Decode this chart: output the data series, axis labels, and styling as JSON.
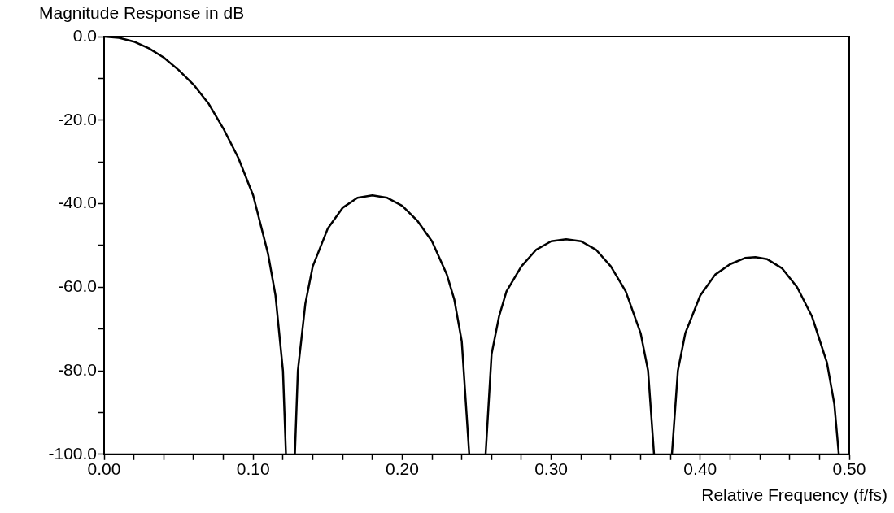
{
  "chart_data": {
    "type": "line",
    "ylabel": "Magnitude Response in dB",
    "xlabel": "Relative Frequency (f/fs)",
    "xlim": [
      0,
      0.5
    ],
    "ylim": [
      -100,
      0
    ],
    "xticks": [
      {
        "value": 0,
        "label": "0.00"
      },
      {
        "value": 0.02,
        "label": null
      },
      {
        "value": 0.04,
        "label": null
      },
      {
        "value": 0.06,
        "label": null
      },
      {
        "value": 0.08,
        "label": null
      },
      {
        "value": 0.1,
        "label": "0.10"
      },
      {
        "value": 0.12,
        "label": null
      },
      {
        "value": 0.14,
        "label": null
      },
      {
        "value": 0.16,
        "label": null
      },
      {
        "value": 0.18,
        "label": null
      },
      {
        "value": 0.2,
        "label": "0.20"
      },
      {
        "value": 0.22,
        "label": null
      },
      {
        "value": 0.24,
        "label": null
      },
      {
        "value": 0.26,
        "label": null
      },
      {
        "value": 0.28,
        "label": null
      },
      {
        "value": 0.3,
        "label": "0.30"
      },
      {
        "value": 0.32,
        "label": null
      },
      {
        "value": 0.34,
        "label": null
      },
      {
        "value": 0.36,
        "label": null
      },
      {
        "value": 0.38,
        "label": null
      },
      {
        "value": 0.4,
        "label": "0.40"
      },
      {
        "value": 0.42,
        "label": null
      },
      {
        "value": 0.44,
        "label": null
      },
      {
        "value": 0.46,
        "label": null
      },
      {
        "value": 0.48,
        "label": null
      },
      {
        "value": 0.5,
        "label": "0.50"
      }
    ],
    "yticks": [
      {
        "value": -100,
        "label": "-100.0"
      },
      {
        "value": -90,
        "label": null
      },
      {
        "value": -80,
        "label": "-80.0"
      },
      {
        "value": -70,
        "label": null
      },
      {
        "value": -60,
        "label": "-60.0"
      },
      {
        "value": -50,
        "label": null
      },
      {
        "value": -40,
        "label": "-40.0"
      },
      {
        "value": -30,
        "label": null
      },
      {
        "value": -20,
        "label": "-20.0"
      },
      {
        "value": -10,
        "label": null
      },
      {
        "value": 0,
        "label": "0.0"
      }
    ],
    "grid": false,
    "legend": false,
    "marker": "none",
    "line_style": "solid",
    "series": [
      {
        "color": "#000000",
        "x": [
          0,
          0.01,
          0.02,
          0.03,
          0.04,
          0.05,
          0.06,
          0.07,
          0.08,
          0.09,
          0.1,
          0.11,
          0.115,
          0.12,
          0.122,
          0.125,
          0.128,
          0.13,
          0.135,
          0.14,
          0.15,
          0.16,
          0.17,
          0.18,
          0.19,
          0.2,
          0.21,
          0.22,
          0.23,
          0.235,
          0.24,
          0.245,
          0.25,
          0.256,
          0.26,
          0.265,
          0.27,
          0.28,
          0.29,
          0.3,
          0.31,
          0.32,
          0.33,
          0.34,
          0.35,
          0.36,
          0.365,
          0.369,
          0.375,
          0.381,
          0.385,
          0.39,
          0.4,
          0.41,
          0.42,
          0.43,
          0.437,
          0.445,
          0.455,
          0.465,
          0.475,
          0.485,
          0.49,
          0.493
        ],
        "values": [
          0,
          -0.3,
          -1.2,
          -2.8,
          -5,
          -8,
          -11.5,
          -16,
          -22,
          -29,
          -38,
          -52,
          -62,
          -80,
          -100,
          null,
          -100,
          -80,
          -64,
          -55,
          -46,
          -41,
          -38.6,
          -38,
          -38.6,
          -40.5,
          -44,
          -49,
          -57,
          -63,
          -73,
          -100,
          null,
          -100,
          -76,
          -67,
          -61,
          -55,
          -51,
          -49,
          -48.5,
          -49,
          -51,
          -55,
          -61,
          -71,
          -80,
          -100,
          null,
          -100,
          -80,
          -71,
          -62,
          -57,
          -54.5,
          -53,
          -52.8,
          -53.3,
          -55.5,
          -60,
          -67,
          -78,
          -88,
          -100
        ]
      }
    ]
  }
}
